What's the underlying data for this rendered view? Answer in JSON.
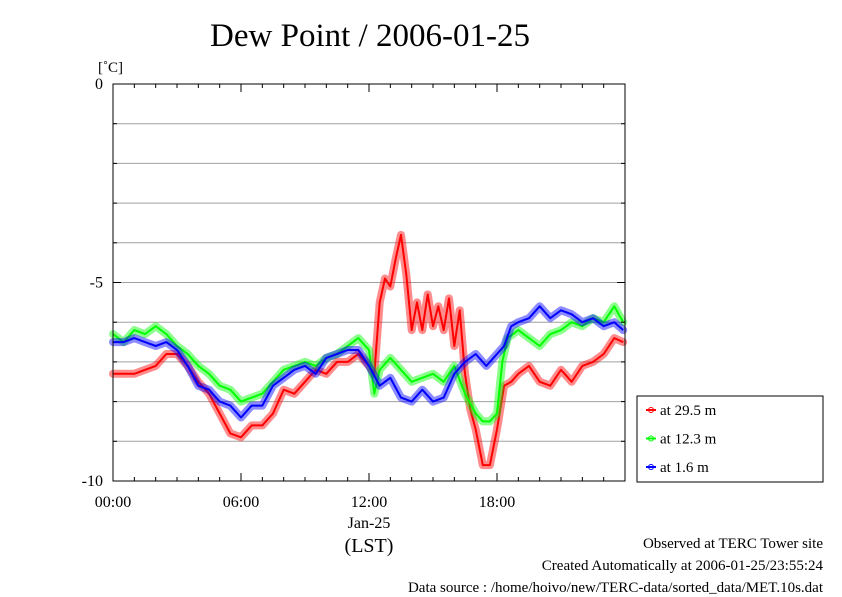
{
  "chart_data": {
    "type": "line",
    "title": "Dew Point / 2006-01-25",
    "ylabel": "[˚C]",
    "xlabel": "(LST)",
    "x_date_label": "Jan-25",
    "ylim": [
      -10,
      0
    ],
    "y_ticks": [
      "0",
      "-5",
      "-10"
    ],
    "x_ticks": [
      "00:00",
      "06:00",
      "12:00",
      "18:00"
    ],
    "xlim": [
      "00:00",
      "23:55"
    ],
    "grid": true,
    "legend_position": "bottom-right outside",
    "series": [
      {
        "name": "at 29.5 m",
        "color": "#ff0000",
        "points": [
          [
            "00:00",
            -7.3
          ],
          [
            "01:00",
            -7.3
          ],
          [
            "02:00",
            -7.1
          ],
          [
            "02:30",
            -6.8
          ],
          [
            "03:00",
            -6.8
          ],
          [
            "03:30",
            -7.1
          ],
          [
            "04:00",
            -7.5
          ],
          [
            "04:30",
            -7.8
          ],
          [
            "05:00",
            -8.3
          ],
          [
            "05:30",
            -8.8
          ],
          [
            "06:00",
            -8.9
          ],
          [
            "06:30",
            -8.6
          ],
          [
            "07:00",
            -8.6
          ],
          [
            "07:30",
            -8.3
          ],
          [
            "08:00",
            -7.7
          ],
          [
            "08:30",
            -7.8
          ],
          [
            "09:00",
            -7.5
          ],
          [
            "09:30",
            -7.2
          ],
          [
            "10:00",
            -7.3
          ],
          [
            "10:30",
            -7.0
          ],
          [
            "11:00",
            -7.0
          ],
          [
            "11:30",
            -6.8
          ],
          [
            "12:00",
            -7.1
          ],
          [
            "12:15",
            -7.3
          ],
          [
            "12:30",
            -5.5
          ],
          [
            "12:45",
            -4.9
          ],
          [
            "13:00",
            -5.1
          ],
          [
            "13:15",
            -4.4
          ],
          [
            "13:30",
            -3.8
          ],
          [
            "13:45",
            -4.8
          ],
          [
            "14:00",
            -6.2
          ],
          [
            "14:15",
            -5.5
          ],
          [
            "14:30",
            -6.2
          ],
          [
            "14:45",
            -5.3
          ],
          [
            "15:00",
            -6.1
          ],
          [
            "15:15",
            -5.6
          ],
          [
            "15:30",
            -6.2
          ],
          [
            "15:45",
            -5.4
          ],
          [
            "16:00",
            -6.6
          ],
          [
            "16:15",
            -5.7
          ],
          [
            "16:30",
            -7.3
          ],
          [
            "16:45",
            -8.2
          ],
          [
            "17:00",
            -8.7
          ],
          [
            "17:20",
            -9.6
          ],
          [
            "17:40",
            -9.6
          ],
          [
            "18:00",
            -8.7
          ],
          [
            "18:20",
            -7.6
          ],
          [
            "18:40",
            -7.5
          ],
          [
            "19:00",
            -7.3
          ],
          [
            "19:30",
            -7.1
          ],
          [
            "20:00",
            -7.5
          ],
          [
            "20:30",
            -7.6
          ],
          [
            "21:00",
            -7.2
          ],
          [
            "21:30",
            -7.5
          ],
          [
            "22:00",
            -7.1
          ],
          [
            "22:30",
            -7.0
          ],
          [
            "23:00",
            -6.8
          ],
          [
            "23:30",
            -6.4
          ],
          [
            "23:55",
            -6.5
          ]
        ]
      },
      {
        "name": "at 12.3 m",
        "color": "#00ff00",
        "points": [
          [
            "00:00",
            -6.3
          ],
          [
            "00:30",
            -6.5
          ],
          [
            "01:00",
            -6.2
          ],
          [
            "01:30",
            -6.3
          ],
          [
            "02:00",
            -6.1
          ],
          [
            "02:30",
            -6.3
          ],
          [
            "03:00",
            -6.6
          ],
          [
            "03:30",
            -6.8
          ],
          [
            "04:00",
            -7.1
          ],
          [
            "04:30",
            -7.3
          ],
          [
            "05:00",
            -7.6
          ],
          [
            "05:30",
            -7.7
          ],
          [
            "06:00",
            -8.0
          ],
          [
            "06:30",
            -7.9
          ],
          [
            "07:00",
            -7.8
          ],
          [
            "07:30",
            -7.5
          ],
          [
            "08:00",
            -7.2
          ],
          [
            "08:30",
            -7.1
          ],
          [
            "09:00",
            -7.0
          ],
          [
            "09:30",
            -7.1
          ],
          [
            "10:00",
            -6.9
          ],
          [
            "10:30",
            -6.8
          ],
          [
            "11:00",
            -6.6
          ],
          [
            "11:30",
            -6.4
          ],
          [
            "12:00",
            -6.7
          ],
          [
            "12:15",
            -7.8
          ],
          [
            "12:30",
            -7.2
          ],
          [
            "13:00",
            -6.9
          ],
          [
            "13:30",
            -7.2
          ],
          [
            "14:00",
            -7.5
          ],
          [
            "14:30",
            -7.4
          ],
          [
            "15:00",
            -7.3
          ],
          [
            "15:30",
            -7.5
          ],
          [
            "16:00",
            -7.1
          ],
          [
            "16:30",
            -7.8
          ],
          [
            "17:00",
            -8.3
          ],
          [
            "17:20",
            -8.5
          ],
          [
            "17:40",
            -8.5
          ],
          [
            "18:00",
            -8.3
          ],
          [
            "18:15",
            -7.0
          ],
          [
            "18:30",
            -6.4
          ],
          [
            "19:00",
            -6.2
          ],
          [
            "19:30",
            -6.4
          ],
          [
            "20:00",
            -6.6
          ],
          [
            "20:30",
            -6.3
          ],
          [
            "21:00",
            -6.2
          ],
          [
            "21:30",
            -6.0
          ],
          [
            "22:00",
            -6.1
          ],
          [
            "22:30",
            -5.9
          ],
          [
            "23:00",
            -6.0
          ],
          [
            "23:30",
            -5.6
          ],
          [
            "23:55",
            -6.0
          ]
        ]
      },
      {
        "name": "at 1.6 m",
        "color": "#0000ff",
        "points": [
          [
            "00:00",
            -6.5
          ],
          [
            "00:30",
            -6.5
          ],
          [
            "01:00",
            -6.4
          ],
          [
            "01:30",
            -6.5
          ],
          [
            "02:00",
            -6.6
          ],
          [
            "02:30",
            -6.5
          ],
          [
            "03:00",
            -6.7
          ],
          [
            "03:30",
            -7.1
          ],
          [
            "04:00",
            -7.6
          ],
          [
            "04:30",
            -7.7
          ],
          [
            "05:00",
            -8.0
          ],
          [
            "05:30",
            -8.1
          ],
          [
            "06:00",
            -8.4
          ],
          [
            "06:30",
            -8.1
          ],
          [
            "07:00",
            -8.1
          ],
          [
            "07:30",
            -7.6
          ],
          [
            "08:00",
            -7.4
          ],
          [
            "08:30",
            -7.2
          ],
          [
            "09:00",
            -7.1
          ],
          [
            "09:30",
            -7.3
          ],
          [
            "10:00",
            -6.9
          ],
          [
            "10:30",
            -6.8
          ],
          [
            "11:00",
            -6.7
          ],
          [
            "11:30",
            -6.7
          ],
          [
            "12:00",
            -7.1
          ],
          [
            "12:30",
            -7.6
          ],
          [
            "13:00",
            -7.4
          ],
          [
            "13:30",
            -7.9
          ],
          [
            "14:00",
            -8.0
          ],
          [
            "14:30",
            -7.7
          ],
          [
            "15:00",
            -8.0
          ],
          [
            "15:30",
            -7.9
          ],
          [
            "16:00",
            -7.3
          ],
          [
            "16:30",
            -7.0
          ],
          [
            "17:00",
            -6.8
          ],
          [
            "17:30",
            -7.1
          ],
          [
            "18:00",
            -6.8
          ],
          [
            "18:20",
            -6.6
          ],
          [
            "18:40",
            -6.1
          ],
          [
            "19:00",
            -6.0
          ],
          [
            "19:30",
            -5.9
          ],
          [
            "20:00",
            -5.6
          ],
          [
            "20:30",
            -5.9
          ],
          [
            "21:00",
            -5.7
          ],
          [
            "21:30",
            -5.8
          ],
          [
            "22:00",
            -6.0
          ],
          [
            "22:30",
            -5.9
          ],
          [
            "23:00",
            -6.1
          ],
          [
            "23:30",
            -6.0
          ],
          [
            "23:55",
            -6.2
          ]
        ]
      }
    ]
  },
  "footer": {
    "observed": "Observed at TERC Tower site",
    "created": "Created Automatically at 2006-01-25/23:55:24",
    "source": "Data source : /home/hoivo/new/TERC-data/sorted_data/MET.10s.dat"
  }
}
